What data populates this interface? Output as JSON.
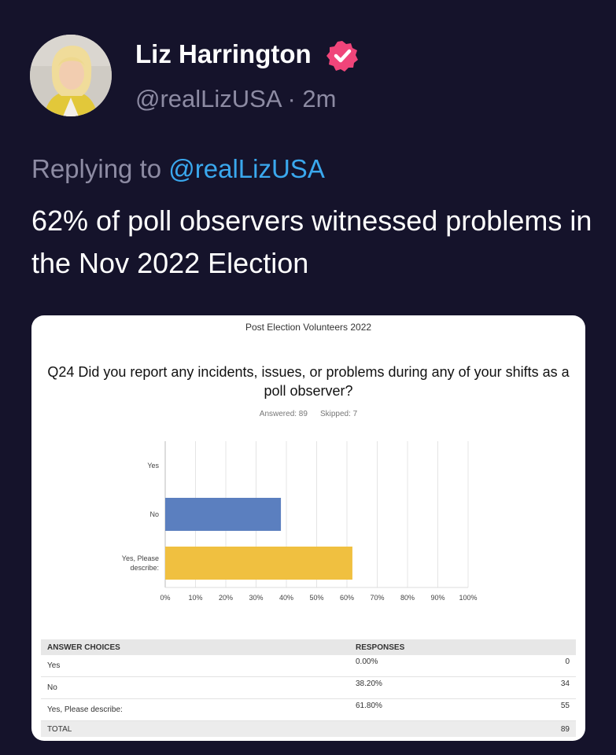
{
  "tweet": {
    "author_name": "Liz Harrington",
    "handle": "@realLizUSA",
    "time_separator": " · ",
    "timestamp": "2m",
    "replying_prefix": "Replying to ",
    "replying_to": "@realLizUSA",
    "text": "62% of poll observers witnessed problems in the Nov 2022 Election",
    "icons": [
      "avatar-photo",
      "verified-badge-icon"
    ],
    "badge_color": "#f0457a"
  },
  "survey": {
    "title": "Post Election Volunteers 2022",
    "question": "Q24 Did you report any incidents, issues,  or problems during any of your shifts as a poll observer?",
    "answered": "Answered: 89",
    "skipped": "Skipped: 7",
    "table": {
      "headers": [
        "ANSWER CHOICES",
        "RESPONSES",
        ""
      ],
      "rows": [
        {
          "choice": "Yes",
          "percent": "0.00%",
          "count": "0"
        },
        {
          "choice": "No",
          "percent": "38.20%",
          "count": "34"
        },
        {
          "choice": "Yes, Please describe:",
          "percent": "61.80%",
          "count": "55"
        }
      ],
      "total_label": "TOTAL",
      "total_count": "89"
    }
  },
  "chart_data": {
    "type": "bar",
    "orientation": "horizontal",
    "categories": [
      "Yes",
      "No",
      "Yes, Please describe:"
    ],
    "category_display": [
      [
        "Yes"
      ],
      [
        "No"
      ],
      [
        "Yes, Please",
        "describe:"
      ]
    ],
    "values": [
      0,
      38.2,
      61.8
    ],
    "colors": [
      "#5b7fbf",
      "#5b7fbf",
      "#f0c040"
    ],
    "xlim": [
      0,
      100
    ],
    "xticks": [
      "0%",
      "10%",
      "20%",
      "30%",
      "40%",
      "50%",
      "60%",
      "70%",
      "80%",
      "90%",
      "100%"
    ],
    "grid": true,
    "title": "",
    "xlabel": "",
    "ylabel": ""
  }
}
